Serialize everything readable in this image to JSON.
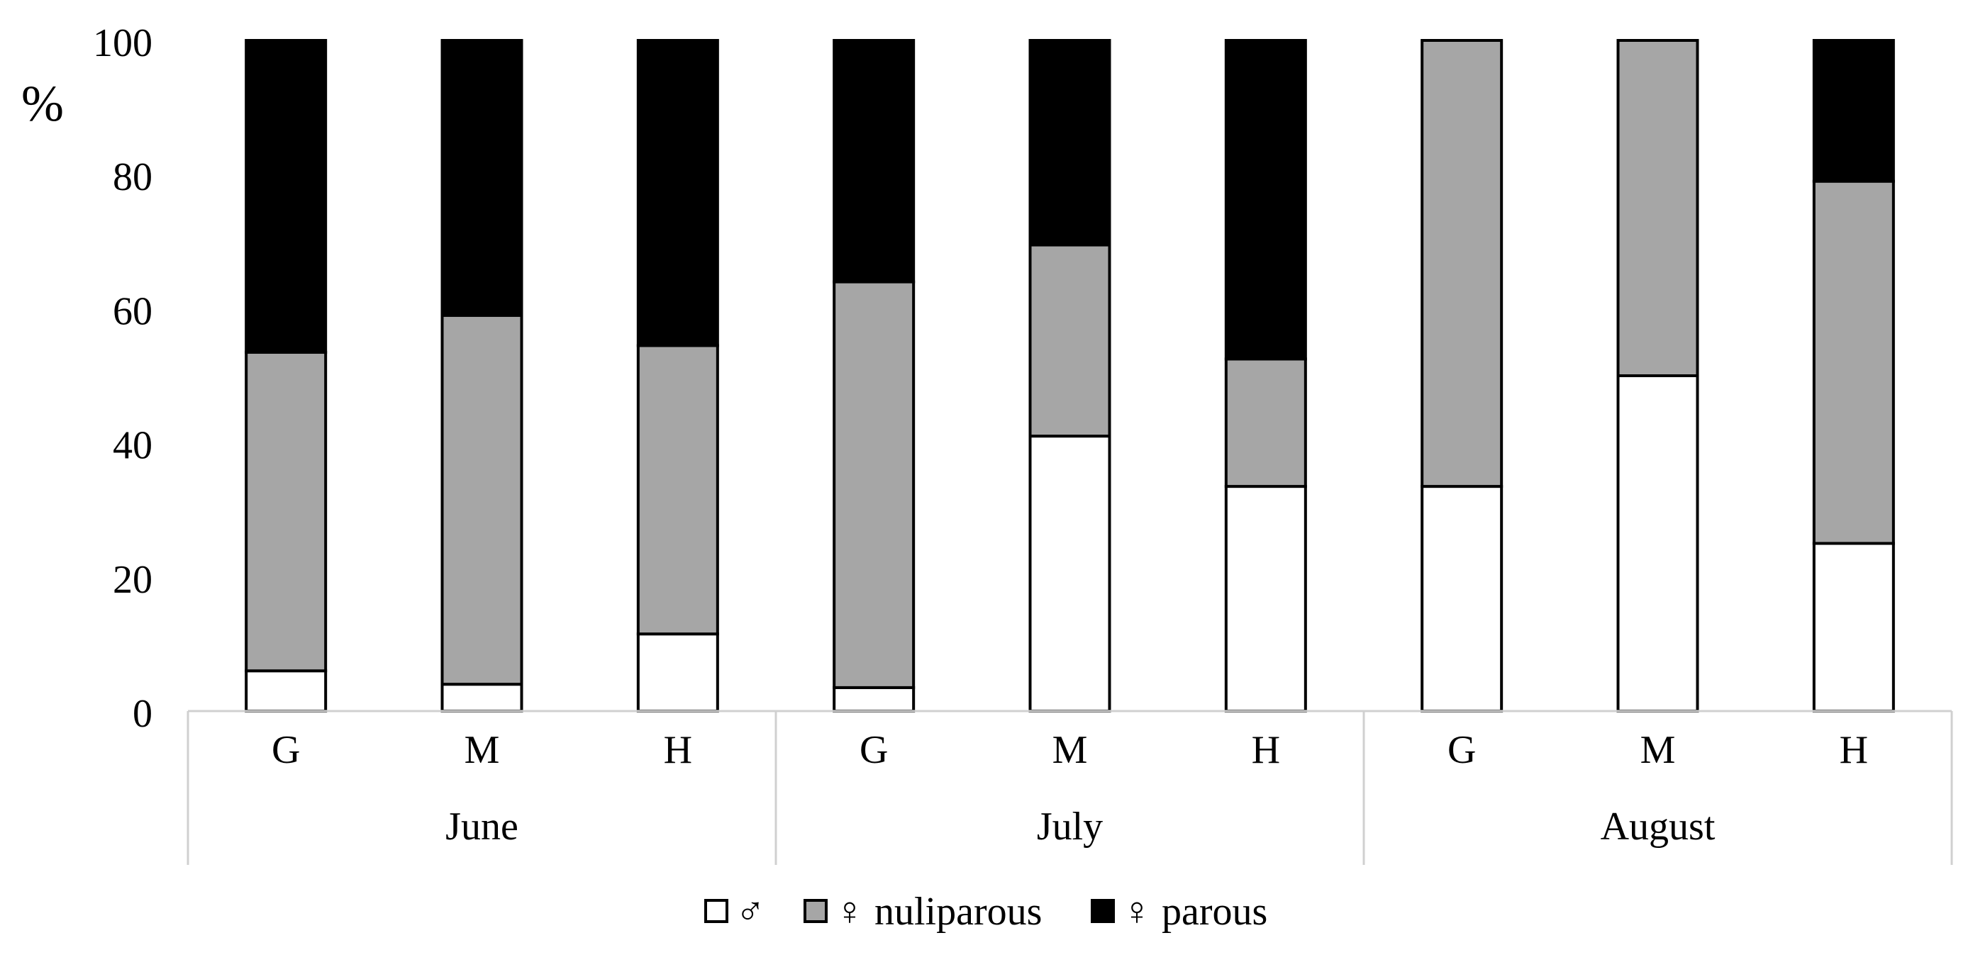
{
  "chart_data": {
    "type": "bar",
    "stacked": true,
    "ylabel": "%",
    "ylim": [
      0,
      100
    ],
    "yticks": [
      0,
      20,
      40,
      60,
      80,
      100
    ],
    "grid": false,
    "legend_position": "bottom",
    "groups": [
      {
        "label": "June",
        "categories": [
          "G",
          "M",
          "H"
        ]
      },
      {
        "label": "July",
        "categories": [
          "G",
          "M",
          "H"
        ]
      },
      {
        "label": "August",
        "categories": [
          "G",
          "M",
          "H"
        ]
      }
    ],
    "series": [
      {
        "name": "♂",
        "color": "#ffffff",
        "values": [
          6,
          4,
          11.5,
          3.5,
          41,
          33.5,
          33.5,
          50,
          25
        ]
      },
      {
        "name": "♀ nuliparous",
        "color": "#a6a6a6",
        "values": [
          47.5,
          55,
          43,
          60.5,
          28.5,
          19,
          66.5,
          50,
          54
        ]
      },
      {
        "name": "♀ parous",
        "color": "#000000",
        "values": [
          46.5,
          41,
          45.5,
          36,
          30.5,
          47.5,
          0,
          0,
          21
        ]
      }
    ]
  }
}
